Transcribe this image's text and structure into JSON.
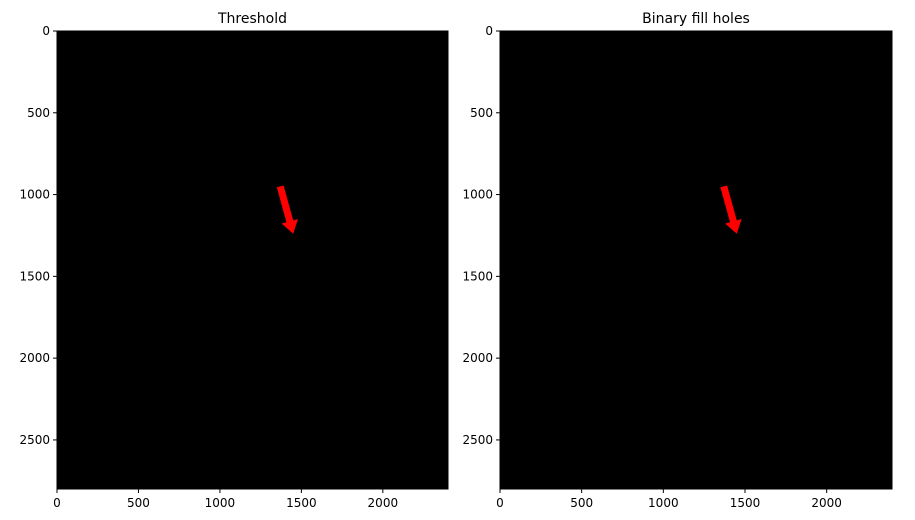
{
  "chart_data": [
    {
      "type": "image",
      "title": "Threshold",
      "xlim": [
        0,
        2400
      ],
      "ylim": [
        2800,
        0
      ],
      "xticks": [
        0,
        500,
        1000,
        1500,
        2000
      ],
      "yticks": [
        0,
        500,
        1000,
        1500,
        2000,
        2500
      ],
      "xtick_labels": [
        "0",
        "500",
        "1000",
        "1500",
        "2000"
      ],
      "ytick_labels": [
        "0",
        "500",
        "1000",
        "1500",
        "2000",
        "2500"
      ],
      "background_color": "#000000",
      "foreground_color": "#ffffff",
      "annotation": {
        "type": "arrow",
        "color": "#ff0000",
        "from": [
          1370,
          950
        ],
        "to": [
          1450,
          1240
        ]
      }
    },
    {
      "type": "image",
      "title": "Binary fill holes",
      "xlim": [
        0,
        2400
      ],
      "ylim": [
        2800,
        0
      ],
      "xticks": [
        0,
        500,
        1000,
        1500,
        2000
      ],
      "yticks": [
        0,
        500,
        1000,
        1500,
        2000,
        2500
      ],
      "xtick_labels": [
        "0",
        "500",
        "1000",
        "1500",
        "2000"
      ],
      "ytick_labels": [
        "0",
        "500",
        "1000",
        "1500",
        "2000",
        "2500"
      ],
      "background_color": "#000000",
      "foreground_color": "#ffffff",
      "annotation": {
        "type": "arrow",
        "color": "#ff0000",
        "from": [
          1370,
          950
        ],
        "to": [
          1450,
          1240
        ]
      }
    }
  ]
}
